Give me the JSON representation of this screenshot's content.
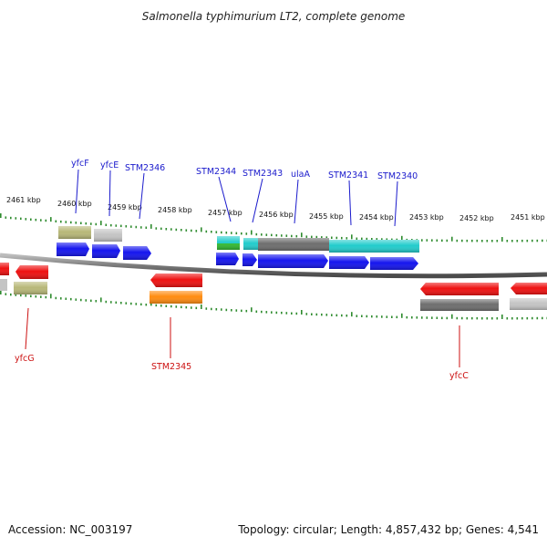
{
  "title": "Salmonella typhimurium LT2, complete genome",
  "footer": {
    "accession": "Accession: NC_003197",
    "stats": "Topology: circular; Length: 4,857,432 bp; Genes: 4,541"
  },
  "colors": {
    "backbone": "#8a8a8a",
    "tick": "#2e8b2e",
    "forward_label": "#1a1acc",
    "reverse_label": "#cc1111",
    "cds_forward": "#1515ee",
    "cds_reverse": "#ee1111",
    "gene_olive": "#b8b878",
    "gene_silver": "#c4c4c4",
    "gene_cyan": "#22cccc",
    "gene_green": "#33bb33",
    "gene_dark": "#6e6e6e",
    "gene_orange": "#ff8c10"
  },
  "axis": {
    "labels": [
      "2461 kbp",
      "2460 kbp",
      "2459 kbp",
      "2458 kbp",
      "2457 kbp",
      "2456 kbp",
      "2455 kbp",
      "2454 kbp",
      "2453 kbp",
      "2452 kbp",
      "2451 kbp"
    ]
  },
  "labels": {
    "forward": [
      "yfcF",
      "yfcE",
      "STM2346",
      "STM2344",
      "STM2343",
      "ulaA",
      "STM2341",
      "STM2340"
    ],
    "reverse": [
      "yfcG",
      "STM2345",
      "yfcC"
    ]
  }
}
